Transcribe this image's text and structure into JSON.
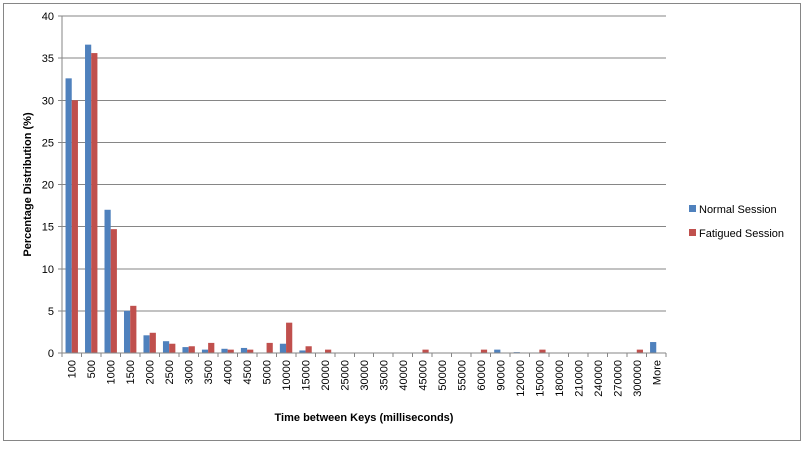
{
  "chart_data": {
    "type": "bar",
    "title": "",
    "xlabel": "Time between Keys (milliseconds)",
    "ylabel": "Percentage Distribution (%)",
    "ylim": [
      0,
      40
    ],
    "yticks": [
      0,
      5,
      10,
      15,
      20,
      25,
      30,
      35,
      40
    ],
    "grid": true,
    "legend_position": "right",
    "categories": [
      "100",
      "500",
      "1000",
      "1500",
      "2000",
      "2500",
      "3000",
      "3500",
      "4000",
      "4500",
      "5000",
      "10000",
      "15000",
      "20000",
      "25000",
      "30000",
      "35000",
      "40000",
      "45000",
      "50000",
      "55000",
      "60000",
      "90000",
      "120000",
      "150000",
      "180000",
      "210000",
      "240000",
      "270000",
      "300000",
      "More"
    ],
    "series": [
      {
        "name": "Normal Session",
        "color": "#4F81BD",
        "values": [
          32.6,
          36.6,
          17.0,
          5.0,
          2.1,
          1.4,
          0.7,
          0.4,
          0.5,
          0.6,
          0.0,
          1.1,
          0.3,
          0.0,
          0.0,
          0.0,
          0.0,
          0.0,
          0.0,
          0.0,
          0.0,
          0.0,
          0.4,
          0.1,
          0.0,
          0.0,
          0.0,
          0.0,
          0.0,
          0.0,
          1.3
        ]
      },
      {
        "name": "Fatigued Session",
        "color": "#C0504D",
        "values": [
          30.0,
          35.6,
          14.7,
          5.6,
          2.4,
          1.1,
          0.8,
          1.2,
          0.4,
          0.4,
          1.2,
          3.6,
          0.8,
          0.4,
          0.0,
          0.0,
          0.0,
          0.0,
          0.4,
          0.0,
          0.0,
          0.4,
          0.0,
          0.0,
          0.4,
          0.0,
          0.0,
          0.0,
          0.0,
          0.4,
          0.0
        ]
      }
    ]
  }
}
